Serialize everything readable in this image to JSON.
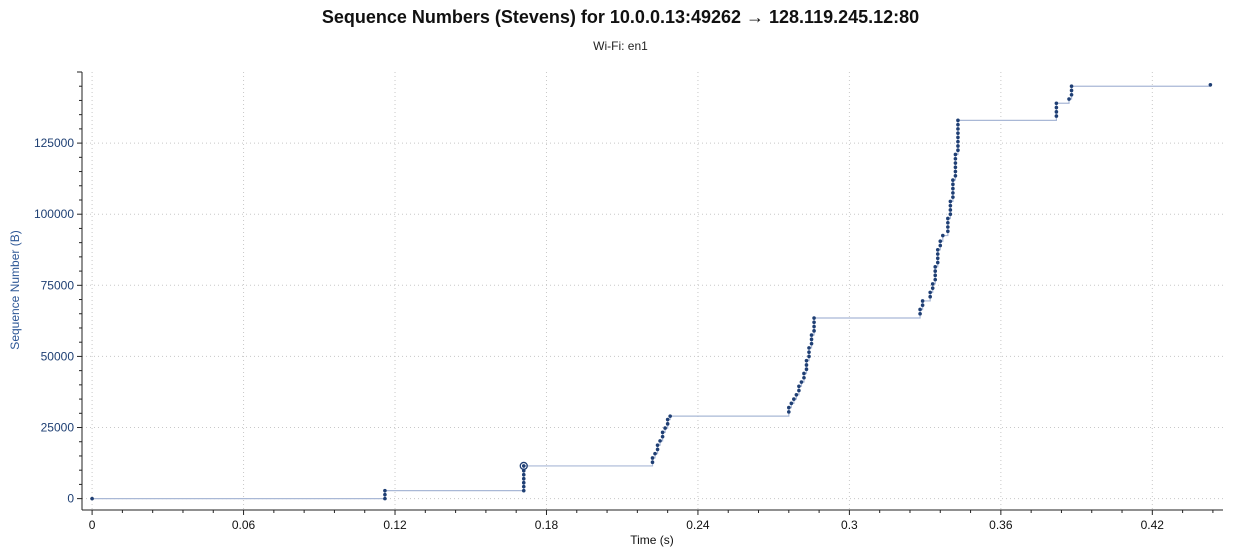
{
  "chart_data": {
    "type": "scatter",
    "title": "Sequence Numbers (Stevens) for 10.0.0.13:49262 → 128.119.245.12:80",
    "subtitle": "Wi-Fi: en1",
    "xlabel": "Time (s)",
    "ylabel": "Sequence Number (B)",
    "xlim": [
      -0.004,
      0.448
    ],
    "ylim": [
      -4000,
      150000
    ],
    "x_ticks": [
      "0",
      "0.06",
      "0.12",
      "0.18",
      "0.24",
      "0.3",
      "0.36",
      "0.42"
    ],
    "x_tick_values": [
      0,
      0.06,
      0.12,
      0.18,
      0.24,
      0.3,
      0.36,
      0.42
    ],
    "y_ticks": [
      "0",
      "25000",
      "50000",
      "75000",
      "100000",
      "125000"
    ],
    "y_tick_values": [
      0,
      25000,
      50000,
      75000,
      100000,
      125000
    ],
    "grid": true,
    "colors": {
      "points": "#1f3f74",
      "line": "#a9b8d6",
      "ylabel": "#2d5796"
    },
    "highlight_point": {
      "x": 0.171,
      "y": 11500
    },
    "series": [
      {
        "name": "",
        "points": [
          [
            0.0,
            0
          ],
          [
            0.116,
            0
          ],
          [
            0.116,
            1400
          ],
          [
            0.116,
            2800
          ],
          [
            0.171,
            2800
          ],
          [
            0.171,
            4200
          ],
          [
            0.171,
            5600
          ],
          [
            0.171,
            7000
          ],
          [
            0.171,
            8400
          ],
          [
            0.171,
            9800
          ],
          [
            0.171,
            11500
          ],
          [
            0.222,
            12800
          ],
          [
            0.222,
            14300
          ],
          [
            0.223,
            15800
          ],
          [
            0.224,
            17300
          ],
          [
            0.224,
            18800
          ],
          [
            0.225,
            20300
          ],
          [
            0.226,
            21800
          ],
          [
            0.226,
            23300
          ],
          [
            0.227,
            24800
          ],
          [
            0.228,
            26300
          ],
          [
            0.228,
            27800
          ],
          [
            0.229,
            29000
          ],
          [
            0.276,
            30500
          ],
          [
            0.276,
            32000
          ],
          [
            0.277,
            33500
          ],
          [
            0.278,
            35000
          ],
          [
            0.279,
            36500
          ],
          [
            0.28,
            38000
          ],
          [
            0.28,
            39500
          ],
          [
            0.281,
            41000
          ],
          [
            0.282,
            42500
          ],
          [
            0.282,
            44000
          ],
          [
            0.283,
            45500
          ],
          [
            0.283,
            47000
          ],
          [
            0.283,
            48500
          ],
          [
            0.284,
            50000
          ],
          [
            0.284,
            51500
          ],
          [
            0.284,
            53000
          ],
          [
            0.285,
            54500
          ],
          [
            0.285,
            56000
          ],
          [
            0.285,
            57500
          ],
          [
            0.286,
            59000
          ],
          [
            0.286,
            60500
          ],
          [
            0.286,
            62000
          ],
          [
            0.286,
            63500
          ],
          [
            0.328,
            65000
          ],
          [
            0.328,
            66500
          ],
          [
            0.329,
            68000
          ],
          [
            0.329,
            69500
          ],
          [
            0.332,
            71000
          ],
          [
            0.332,
            72500
          ],
          [
            0.333,
            74000
          ],
          [
            0.333,
            75500
          ],
          [
            0.334,
            77000
          ],
          [
            0.334,
            78500
          ],
          [
            0.334,
            80000
          ],
          [
            0.334,
            81500
          ],
          [
            0.335,
            83000
          ],
          [
            0.335,
            84500
          ],
          [
            0.335,
            86000
          ],
          [
            0.335,
            87500
          ],
          [
            0.336,
            89000
          ],
          [
            0.336,
            90500
          ],
          [
            0.337,
            92500
          ],
          [
            0.339,
            94000
          ],
          [
            0.339,
            95500
          ],
          [
            0.339,
            97000
          ],
          [
            0.339,
            98500
          ],
          [
            0.34,
            100000
          ],
          [
            0.34,
            101500
          ],
          [
            0.34,
            103000
          ],
          [
            0.34,
            104500
          ],
          [
            0.341,
            106000
          ],
          [
            0.341,
            107500
          ],
          [
            0.341,
            109000
          ],
          [
            0.341,
            110500
          ],
          [
            0.341,
            112000
          ],
          [
            0.342,
            113500
          ],
          [
            0.342,
            115000
          ],
          [
            0.342,
            116500
          ],
          [
            0.342,
            118000
          ],
          [
            0.342,
            119500
          ],
          [
            0.342,
            121000
          ],
          [
            0.343,
            122500
          ],
          [
            0.343,
            124000
          ],
          [
            0.343,
            125500
          ],
          [
            0.343,
            127000
          ],
          [
            0.343,
            128500
          ],
          [
            0.343,
            130000
          ],
          [
            0.343,
            131500
          ],
          [
            0.343,
            133000
          ],
          [
            0.382,
            134500
          ],
          [
            0.382,
            136000
          ],
          [
            0.382,
            137500
          ],
          [
            0.382,
            139000
          ],
          [
            0.387,
            140500
          ],
          [
            0.388,
            142000
          ],
          [
            0.388,
            143500
          ],
          [
            0.388,
            145000
          ],
          [
            0.443,
            145500
          ]
        ]
      }
    ]
  }
}
